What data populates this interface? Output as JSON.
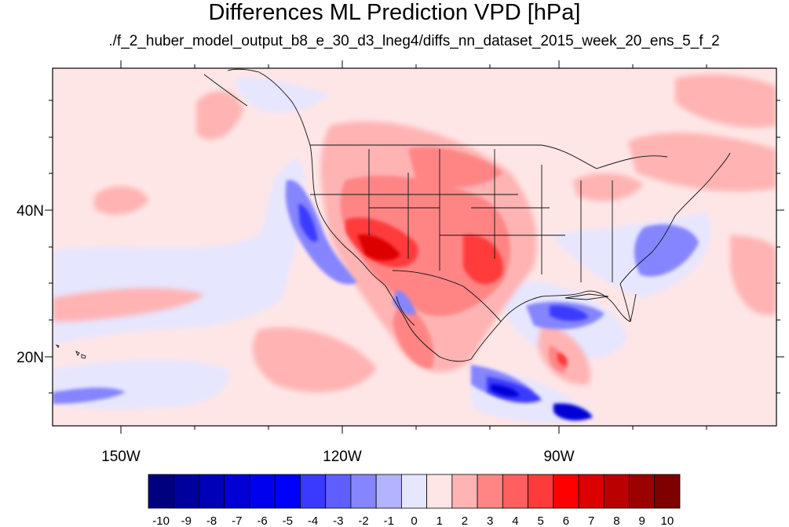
{
  "title": "Differences ML Prediction VPD [hPa]",
  "subtitle": "./f_2_huber_model_output_b8_e_30_d3_lneg4/diffs_nn_dataset_2015_week_20_ens_5_f_2",
  "axes": {
    "lon_ticks": [
      "150W",
      "120W",
      "90W"
    ],
    "lat_ticks": [
      "40N",
      "20N"
    ]
  },
  "colorbar": {
    "labels": [
      "-10",
      "-9",
      "-8",
      "-7",
      "-6",
      "-5",
      "-4",
      "-3",
      "-2",
      "-1",
      "0",
      "1",
      "2",
      "3",
      "4",
      "5",
      "6",
      "7",
      "8",
      "9",
      "10"
    ],
    "colors": [
      "#00007f",
      "#00009c",
      "#0000b9",
      "#0000d6",
      "#0000ef",
      "#0000ff",
      "#3a3aff",
      "#5f5fff",
      "#8585ff",
      "#b3b3ff",
      "#e6e6ff",
      "#ffe6e6",
      "#ffb3b3",
      "#ff8585",
      "#ff5f5f",
      "#ff3a3a",
      "#ff0000",
      "#dc0000",
      "#bb0000",
      "#9a0000",
      "#7f0000"
    ]
  },
  "colors": {
    "background_field": "#ffe6e6",
    "strong_positive": "#ff3a3a",
    "strong_negative": "#3a3aff"
  }
}
